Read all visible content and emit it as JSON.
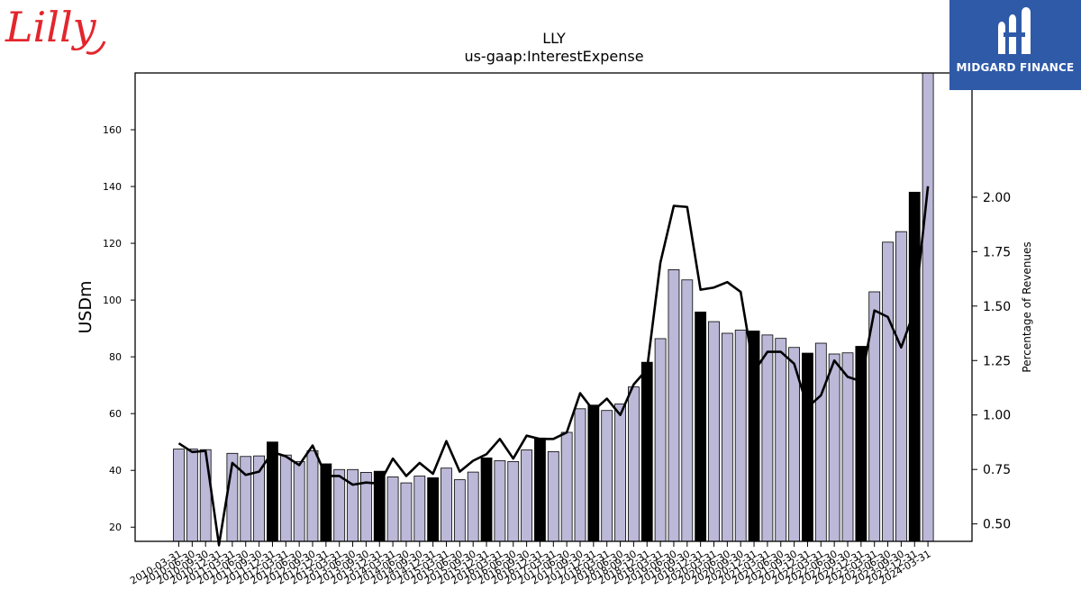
{
  "header": {
    "left_logo_text": "Lilly",
    "right_logo_text": "MIDGARD FINANCE"
  },
  "colors": {
    "bar_regular": "#bcb8d8",
    "bar_q4": "#000000",
    "line": "#000000",
    "right_logo_bg": "#2f5aa8",
    "left_logo": "#e3262c"
  },
  "chart_data": {
    "type": "bar",
    "title": "LLY",
    "subtitle": "us-gaap:InterestExpense",
    "ylabel": "USDm",
    "y2label": "Percentage of Revenues",
    "ylim": [
      15,
      180
    ],
    "y2lim": [
      0.42,
      2.57
    ],
    "yticks": [
      20,
      40,
      60,
      80,
      100,
      120,
      140,
      160
    ],
    "y2ticks": [
      0.5,
      0.75,
      1.0,
      1.25,
      1.5,
      1.75,
      2.0
    ],
    "y2tick_labels": [
      "0.50",
      "0.75",
      "1.00",
      "1.25",
      "1.50",
      "1.75",
      "2.00"
    ],
    "xtick_labels": [
      "2010-03-31",
      "2010-06-30",
      "2010-09-30",
      "2010-12-31",
      "2011-03-31",
      "2011-06-30",
      "2011-09-30",
      "2011-12-31",
      "2012-03-31",
      "2012-06-30",
      "2012-09-30",
      "2012-12-31",
      "2013-03-31",
      "2013-06-30",
      "2013-09-30",
      "2013-12-31",
      "2014-03-31",
      "2014-06-30",
      "2014-09-30",
      "2014-12-31",
      "2015-03-31",
      "2015-06-30",
      "2015-09-30",
      "2015-12-31",
      "2016-03-31",
      "2016-06-30",
      "2016-09-30",
      "2016-12-31",
      "2017-03-31",
      "2017-06-30",
      "2017-09-30",
      "2017-12-31",
      "2018-03-31",
      "2018-06-30",
      "2018-09-30",
      "2018-12-31",
      "2019-03-31",
      "2019-06-30",
      "2019-09-30",
      "2019-12-31",
      "2020-03-31",
      "2020-06-30",
      "2020-09-30",
      "2020-12-31",
      "2021-03-31",
      "2021-06-30",
      "2021-09-30",
      "2021-12-31",
      "2022-03-31",
      "2022-06-30",
      "2022-09-30",
      "2022-12-31",
      "2023-03-31",
      "2023-06-30",
      "2023-09-30",
      "2023-12-31",
      "2024-03-31"
    ],
    "series": [
      {
        "type": "bar",
        "axis": "left",
        "values": [
          47.5,
          47.5,
          47.3,
          null,
          46,
          44.9,
          45.1,
          50,
          45.4,
          43.1,
          46.9,
          42.3,
          40.3,
          40.3,
          39.3,
          39.7,
          37.7,
          35.6,
          38,
          37.4,
          40.8,
          36.7,
          39.4,
          44.4,
          43.4,
          43.1,
          47.2,
          51.4,
          46.6,
          53.4,
          61.7,
          63,
          61.1,
          63.4,
          69.4,
          78.1,
          86.4,
          110.7,
          107.1,
          95.8,
          92.4,
          88.3,
          89.4,
          89.1,
          87.7,
          86.5,
          83.3,
          81.3,
          84.8,
          81,
          81.4,
          83.7,
          102.9,
          120.4,
          124.1,
          138,
          180
        ],
        "q4_highlight": [
          false,
          false,
          false,
          true,
          false,
          false,
          false,
          true,
          false,
          false,
          false,
          true,
          false,
          false,
          false,
          true,
          false,
          false,
          false,
          true,
          false,
          false,
          false,
          true,
          false,
          false,
          false,
          true,
          false,
          false,
          false,
          true,
          false,
          false,
          false,
          true,
          false,
          false,
          false,
          true,
          false,
          false,
          false,
          true,
          false,
          false,
          false,
          true,
          false,
          false,
          false,
          true,
          false,
          false,
          false,
          true,
          false
        ]
      },
      {
        "type": "line",
        "axis": "right",
        "values": [
          0.87,
          0.83,
          0.835,
          0.12,
          0.78,
          0.725,
          0.74,
          0.83,
          0.81,
          0.77,
          0.86,
          0.72,
          0.72,
          0.68,
          0.69,
          0.685,
          0.8,
          0.72,
          0.78,
          0.73,
          0.88,
          0.74,
          0.79,
          0.82,
          0.89,
          0.8,
          0.905,
          0.89,
          0.89,
          0.92,
          1.1,
          1.02,
          1.075,
          1.0,
          1.14,
          1.21,
          1.7,
          1.96,
          1.955,
          1.575,
          1.585,
          1.61,
          1.565,
          1.2,
          1.29,
          1.29,
          1.235,
          1.035,
          1.09,
          1.25,
          1.175,
          1.155,
          1.48,
          1.45,
          1.31,
          1.48,
          2.05
        ]
      }
    ]
  }
}
